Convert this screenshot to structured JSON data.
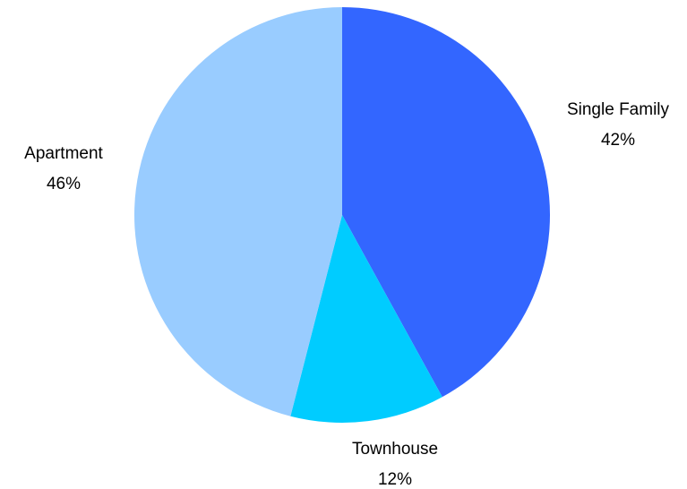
{
  "chart_data": {
    "type": "pie",
    "title": "",
    "slices": [
      {
        "label": "Single Family",
        "percent_label": "42%",
        "value": 42,
        "color": "#3366ff"
      },
      {
        "label": "Townhouse",
        "percent_label": "12%",
        "value": 12,
        "color": "#00ccff"
      },
      {
        "label": "Apartment",
        "percent_label": "46%",
        "value": 46,
        "color": "#99ccff"
      }
    ],
    "start_angle_deg": 0,
    "direction": "clockwise",
    "legend": "none",
    "data_labels": "outside"
  }
}
